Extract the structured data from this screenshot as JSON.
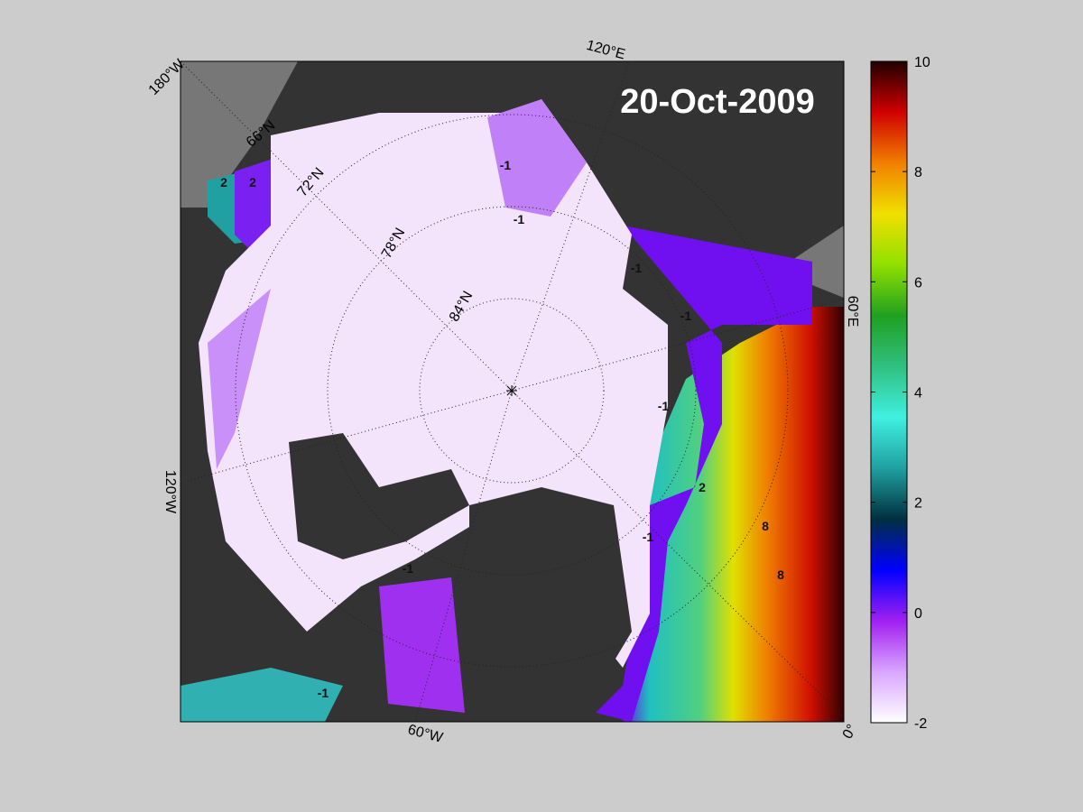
{
  "title": "20-Oct-2009",
  "longitude_labels": [
    "180°W",
    "120°E",
    "60°E",
    "0°",
    "60°W",
    "120°W"
  ],
  "latitude_labels": [
    "66°N",
    "72°N",
    "78°N",
    "84°N"
  ],
  "contour_labels": [
    "-1",
    "-1",
    "-1",
    "-1",
    "-1",
    "-1",
    "-1",
    "-1",
    "2",
    "2",
    "2",
    "8",
    "8"
  ],
  "colorbar": {
    "lim": [
      -2,
      10
    ],
    "ticks": [
      -2,
      0,
      2,
      4,
      6,
      8,
      10
    ],
    "colormap": [
      "#ffffff",
      "#d9a6ff",
      "#a020f0",
      "#0000ff",
      "#003040",
      "#20a0a0",
      "#40f0e0",
      "#30c080",
      "#20a020",
      "#90e000",
      "#f0e000",
      "#f08000",
      "#d00000",
      "#200000"
    ]
  }
}
